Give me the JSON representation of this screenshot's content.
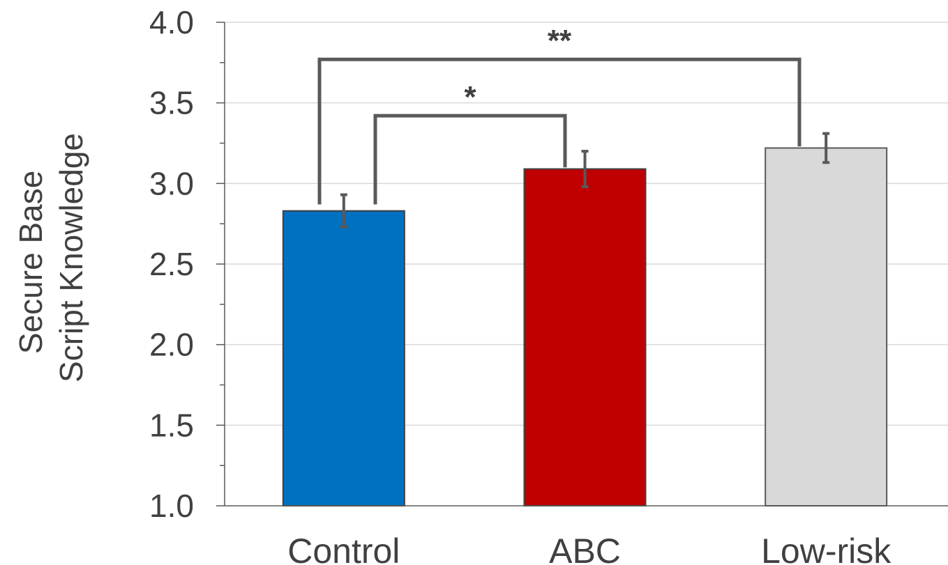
{
  "chart_data": {
    "type": "bar",
    "title": "",
    "xlabel": "",
    "ylabel_lines": [
      "Secure Base",
      "Script Knowledge"
    ],
    "categories": [
      "Control",
      "ABC",
      "Low-risk"
    ],
    "values": [
      2.83,
      3.09,
      3.22
    ],
    "errors": [
      0.1,
      0.11,
      0.09
    ],
    "colors": [
      "#0070C0",
      "#C00000",
      "#D9D9D9"
    ],
    "bar_border_colors": [
      "#404040",
      "#404040",
      "#595959"
    ],
    "ylim": [
      1.0,
      4.0
    ],
    "yticks": [
      "1.0",
      "1.5",
      "2.0",
      "2.5",
      "3.0",
      "3.5",
      "4.0"
    ],
    "grid": true,
    "legend": "none",
    "significance": [
      {
        "from": 0,
        "to": 1,
        "label": "*",
        "level": 3.42
      },
      {
        "from": 0,
        "to": 2,
        "label": "**",
        "level": 3.77
      }
    ]
  }
}
